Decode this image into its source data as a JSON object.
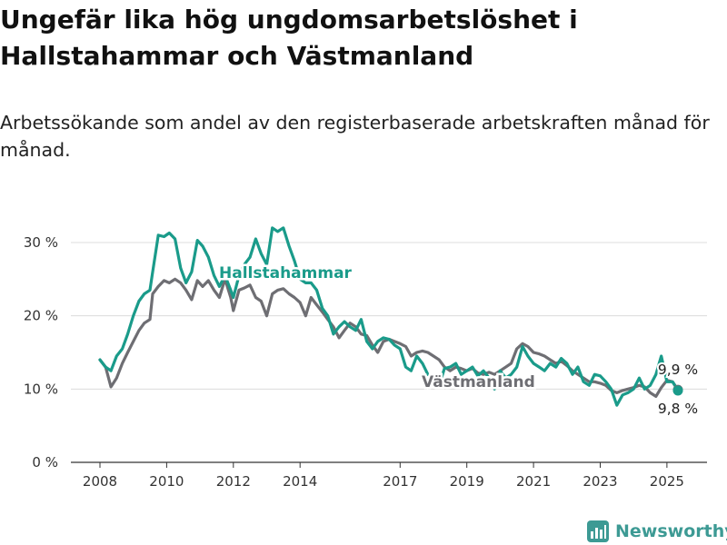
{
  "chart_data": {
    "type": "line",
    "title": "Ungefär lika hög ungdomsarbetslöshet i Hallstahammar och Västmanland",
    "subtitle": "Arbetssökande som andel av den registerbaserade arbetskraften månad för månad.",
    "xlabel": "",
    "ylabel": "",
    "x_range": [
      2008.0,
      2025.33
    ],
    "ylim": [
      0,
      30
    ],
    "y_ticks": [
      0,
      10,
      20,
      30
    ],
    "y_tick_labels": [
      "0 %",
      "10 %",
      "20 %",
      "30 %"
    ],
    "x_ticks": [
      2008,
      2010,
      2012,
      2014,
      2017,
      2019,
      2021,
      2023,
      2025
    ],
    "x_tick_labels": [
      "2008",
      "2010",
      "2012",
      "2014",
      "2017",
      "2019",
      "2021",
      "2023",
      "2025"
    ],
    "grid": "horizontal",
    "series": [
      {
        "name": "Västmanland",
        "color": "#6e6e73",
        "end_label": "9,9 %",
        "points": [
          [
            2008.0,
            14.0
          ],
          [
            2008.17,
            13.0
          ],
          [
            2008.33,
            10.3
          ],
          [
            2008.5,
            11.5
          ],
          [
            2008.67,
            13.5
          ],
          [
            2008.83,
            15.0
          ],
          [
            2009.0,
            16.5
          ],
          [
            2009.17,
            18.0
          ],
          [
            2009.33,
            19.0
          ],
          [
            2009.5,
            19.5
          ],
          [
            2009.58,
            23.0
          ],
          [
            2009.75,
            24.0
          ],
          [
            2009.92,
            24.8
          ],
          [
            2010.08,
            24.5
          ],
          [
            2010.25,
            25.0
          ],
          [
            2010.42,
            24.5
          ],
          [
            2010.58,
            23.5
          ],
          [
            2010.75,
            22.2
          ],
          [
            2010.92,
            24.8
          ],
          [
            2011.08,
            24.0
          ],
          [
            2011.25,
            24.8
          ],
          [
            2011.42,
            23.5
          ],
          [
            2011.58,
            22.5
          ],
          [
            2011.75,
            25.0
          ],
          [
            2011.92,
            22.5
          ],
          [
            2012.0,
            20.7
          ],
          [
            2012.17,
            23.5
          ],
          [
            2012.33,
            23.8
          ],
          [
            2012.5,
            24.2
          ],
          [
            2012.67,
            22.5
          ],
          [
            2012.83,
            22.0
          ],
          [
            2013.0,
            20.0
          ],
          [
            2013.17,
            23.0
          ],
          [
            2013.33,
            23.5
          ],
          [
            2013.5,
            23.7
          ],
          [
            2013.67,
            23.0
          ],
          [
            2013.83,
            22.5
          ],
          [
            2014.0,
            21.8
          ],
          [
            2014.17,
            20.0
          ],
          [
            2014.33,
            22.5
          ],
          [
            2014.5,
            21.5
          ],
          [
            2014.67,
            20.5
          ],
          [
            2014.83,
            19.5
          ],
          [
            2015.0,
            18.5
          ],
          [
            2015.17,
            17.0
          ],
          [
            2015.33,
            18.0
          ],
          [
            2015.5,
            19.0
          ],
          [
            2015.67,
            18.5
          ],
          [
            2015.83,
            17.5
          ],
          [
            2016.0,
            17.3
          ],
          [
            2016.17,
            16.0
          ],
          [
            2016.33,
            15.0
          ],
          [
            2016.5,
            16.5
          ],
          [
            2016.67,
            16.8
          ],
          [
            2016.83,
            16.5
          ],
          [
            2017.0,
            16.2
          ],
          [
            2017.17,
            15.8
          ],
          [
            2017.33,
            14.5
          ],
          [
            2017.5,
            15.0
          ],
          [
            2017.67,
            15.2
          ],
          [
            2017.83,
            15.0
          ],
          [
            2018.0,
            14.5
          ],
          [
            2018.17,
            14.0
          ],
          [
            2018.33,
            13.0
          ],
          [
            2018.5,
            12.5
          ],
          [
            2018.67,
            13.0
          ],
          [
            2018.83,
            12.8
          ],
          [
            2019.0,
            12.5
          ],
          [
            2019.17,
            12.8
          ],
          [
            2019.33,
            12.2
          ],
          [
            2019.5,
            12.0
          ],
          [
            2019.67,
            12.3
          ],
          [
            2019.83,
            12.0
          ],
          [
            2020.0,
            12.5
          ],
          [
            2020.17,
            13.0
          ],
          [
            2020.33,
            13.5
          ],
          [
            2020.5,
            15.5
          ],
          [
            2020.67,
            16.2
          ],
          [
            2020.83,
            15.8
          ],
          [
            2021.0,
            15.0
          ],
          [
            2021.17,
            14.8
          ],
          [
            2021.33,
            14.5
          ],
          [
            2021.5,
            14.0
          ],
          [
            2021.67,
            13.5
          ],
          [
            2021.83,
            13.8
          ],
          [
            2022.0,
            13.2
          ],
          [
            2022.17,
            12.5
          ],
          [
            2022.33,
            12.0
          ],
          [
            2022.5,
            11.5
          ],
          [
            2022.67,
            11.0
          ],
          [
            2022.83,
            11.0
          ],
          [
            2023.0,
            10.8
          ],
          [
            2023.17,
            10.5
          ],
          [
            2023.33,
            9.8
          ],
          [
            2023.5,
            9.5
          ],
          [
            2023.67,
            9.8
          ],
          [
            2023.83,
            10.0
          ],
          [
            2024.0,
            10.2
          ],
          [
            2024.17,
            10.5
          ],
          [
            2024.33,
            10.3
          ],
          [
            2024.5,
            9.5
          ],
          [
            2024.67,
            9.0
          ],
          [
            2024.83,
            10.2
          ],
          [
            2025.0,
            11.2
          ],
          [
            2025.17,
            11.0
          ],
          [
            2025.33,
            9.9
          ]
        ]
      },
      {
        "name": "Hallstahammar",
        "color": "#1a9b8a",
        "end_label": "9,8 %",
        "points": [
          [
            2008.0,
            14.0
          ],
          [
            2008.17,
            13.0
          ],
          [
            2008.33,
            12.5
          ],
          [
            2008.5,
            14.5
          ],
          [
            2008.67,
            15.5
          ],
          [
            2008.83,
            17.5
          ],
          [
            2009.0,
            20.0
          ],
          [
            2009.17,
            22.0
          ],
          [
            2009.33,
            23.0
          ],
          [
            2009.5,
            23.5
          ],
          [
            2009.58,
            26.0
          ],
          [
            2009.75,
            31.0
          ],
          [
            2009.92,
            30.8
          ],
          [
            2010.08,
            31.3
          ],
          [
            2010.25,
            30.5
          ],
          [
            2010.42,
            26.5
          ],
          [
            2010.58,
            24.5
          ],
          [
            2010.75,
            26.0
          ],
          [
            2010.92,
            30.3
          ],
          [
            2011.08,
            29.5
          ],
          [
            2011.25,
            28.0
          ],
          [
            2011.42,
            25.5
          ],
          [
            2011.58,
            24.0
          ],
          [
            2011.75,
            25.5
          ],
          [
            2011.92,
            23.5
          ],
          [
            2012.0,
            22.5
          ],
          [
            2012.17,
            25.5
          ],
          [
            2012.33,
            27.0
          ],
          [
            2012.5,
            28.0
          ],
          [
            2012.67,
            30.5
          ],
          [
            2012.83,
            28.5
          ],
          [
            2013.0,
            27.0
          ],
          [
            2013.17,
            32.0
          ],
          [
            2013.33,
            31.5
          ],
          [
            2013.5,
            32.0
          ],
          [
            2013.67,
            29.5
          ],
          [
            2013.83,
            27.5
          ],
          [
            2014.0,
            25.0
          ],
          [
            2014.17,
            24.5
          ],
          [
            2014.33,
            24.5
          ],
          [
            2014.5,
            23.5
          ],
          [
            2014.67,
            21.0
          ],
          [
            2014.83,
            20.0
          ],
          [
            2015.0,
            17.5
          ],
          [
            2015.17,
            18.5
          ],
          [
            2015.33,
            19.2
          ],
          [
            2015.5,
            18.5
          ],
          [
            2015.67,
            18.0
          ],
          [
            2015.83,
            19.5
          ],
          [
            2016.0,
            16.5
          ],
          [
            2016.17,
            15.5
          ],
          [
            2016.33,
            16.5
          ],
          [
            2016.5,
            17.0
          ],
          [
            2016.67,
            16.8
          ],
          [
            2016.83,
            16.0
          ],
          [
            2017.0,
            15.5
          ],
          [
            2017.17,
            13.0
          ],
          [
            2017.33,
            12.5
          ],
          [
            2017.5,
            14.5
          ],
          [
            2017.67,
            13.5
          ],
          [
            2017.83,
            12.0
          ],
          [
            2018.0,
            11.5
          ],
          [
            2018.17,
            10.5
          ],
          [
            2018.33,
            12.8
          ],
          [
            2018.5,
            13.0
          ],
          [
            2018.67,
            13.5
          ],
          [
            2018.83,
            12.0
          ],
          [
            2019.0,
            12.5
          ],
          [
            2019.17,
            13.0
          ],
          [
            2019.33,
            11.8
          ],
          [
            2019.5,
            12.5
          ],
          [
            2019.67,
            11.5
          ],
          [
            2019.83,
            10.0
          ],
          [
            2020.0,
            12.5
          ],
          [
            2020.17,
            11.5
          ],
          [
            2020.33,
            12.0
          ],
          [
            2020.5,
            13.0
          ],
          [
            2020.67,
            15.8
          ],
          [
            2020.83,
            14.5
          ],
          [
            2021.0,
            13.5
          ],
          [
            2021.17,
            13.0
          ],
          [
            2021.33,
            12.5
          ],
          [
            2021.5,
            13.5
          ],
          [
            2021.67,
            13.0
          ],
          [
            2021.83,
            14.2
          ],
          [
            2022.0,
            13.5
          ],
          [
            2022.17,
            12.0
          ],
          [
            2022.33,
            13.0
          ],
          [
            2022.5,
            11.0
          ],
          [
            2022.67,
            10.5
          ],
          [
            2022.83,
            12.0
          ],
          [
            2023.0,
            11.8
          ],
          [
            2023.17,
            11.0
          ],
          [
            2023.33,
            10.0
          ],
          [
            2023.5,
            7.8
          ],
          [
            2023.67,
            9.2
          ],
          [
            2023.83,
            9.5
          ],
          [
            2024.0,
            10.0
          ],
          [
            2024.17,
            11.5
          ],
          [
            2024.33,
            10.0
          ],
          [
            2024.5,
            10.5
          ],
          [
            2024.67,
            12.0
          ],
          [
            2024.83,
            14.5
          ],
          [
            2025.0,
            11.0
          ],
          [
            2025.17,
            11.0
          ],
          [
            2025.33,
            9.8
          ]
        ]
      }
    ],
    "series_label_positions": [
      "inline"
    ],
    "end_marker": "dot"
  },
  "brand": {
    "name": "Newsworthy",
    "color": "#3d9a94",
    "icon": "bar-chart-logo-icon"
  }
}
